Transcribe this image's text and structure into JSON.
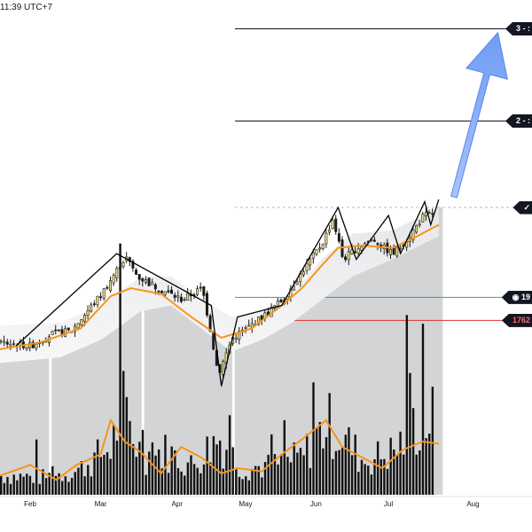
{
  "header": {
    "clock_text": "11:39 UTC+7"
  },
  "targets": [
    {
      "label": "3 - :",
      "price_text_color": "#ffffff"
    },
    {
      "label": "2 - :"
    },
    {
      "label": "✓"
    },
    {
      "label": "◉ 19"
    },
    {
      "label": "1762"
    }
  ],
  "colors": {
    "candle": "#1a1a1a",
    "candle_up": "#f2e27a",
    "ma": "#f7941d",
    "envelope": "#d1d4dc",
    "target_line": "#131722",
    "entry_line": "#26a69a",
    "stop_line": "#e0312e",
    "arrow": "#7ba6f7",
    "zigzag": "#000000",
    "volume": "#111111"
  },
  "chart_data": {
    "type": "candlestick",
    "x_tick_labels": [
      "Feb",
      "Mar",
      "Apr",
      "May",
      "Jun",
      "Jul",
      "Aug"
    ],
    "y_range": [
      1650,
      2150
    ],
    "levels": {
      "target3": 2130,
      "target2": 2050,
      "target1": 1975,
      "entry": 1897,
      "stop": 1877
    },
    "price_path": [
      {
        "d": 0,
        "p": 1858
      },
      {
        "d": 15,
        "p": 1855
      },
      {
        "d": 25,
        "p": 1865
      },
      {
        "d": 35,
        "p": 1868
      },
      {
        "d": 50,
        "p": 1900
      },
      {
        "d": 62,
        "p": 1932
      },
      {
        "d": 68,
        "p": 1915
      },
      {
        "d": 78,
        "p": 1905
      },
      {
        "d": 90,
        "p": 1895
      },
      {
        "d": 100,
        "p": 1905
      },
      {
        "d": 104,
        "p": 1870
      },
      {
        "d": 108,
        "p": 1830
      },
      {
        "d": 115,
        "p": 1862
      },
      {
        "d": 122,
        "p": 1870
      },
      {
        "d": 130,
        "p": 1880
      },
      {
        "d": 140,
        "p": 1895
      },
      {
        "d": 150,
        "p": 1920
      },
      {
        "d": 160,
        "p": 1945
      },
      {
        "d": 165,
        "p": 1965
      },
      {
        "d": 170,
        "p": 1930
      },
      {
        "d": 177,
        "p": 1940
      },
      {
        "d": 185,
        "p": 1948
      },
      {
        "d": 190,
        "p": 1940
      },
      {
        "d": 195,
        "p": 1935
      },
      {
        "d": 203,
        "p": 1950
      },
      {
        "d": 210,
        "p": 1968
      },
      {
        "d": 215,
        "p": 1970
      }
    ],
    "zigzag": [
      {
        "d": 8,
        "p": 1855
      },
      {
        "d": 58,
        "p": 1935
      },
      {
        "d": 105,
        "p": 1890
      },
      {
        "d": 110,
        "p": 1820
      },
      {
        "d": 118,
        "p": 1880
      },
      {
        "d": 140,
        "p": 1890
      },
      {
        "d": 168,
        "p": 1975
      },
      {
        "d": 177,
        "p": 1930
      },
      {
        "d": 193,
        "p": 1968
      },
      {
        "d": 199,
        "p": 1935
      },
      {
        "d": 211,
        "p": 1980
      },
      {
        "d": 214,
        "p": 1960
      },
      {
        "d": 218,
        "p": 1982
      }
    ],
    "ma_path": [
      {
        "d": 0,
        "p": 1852
      },
      {
        "d": 20,
        "p": 1858
      },
      {
        "d": 40,
        "p": 1870
      },
      {
        "d": 55,
        "p": 1898
      },
      {
        "d": 65,
        "p": 1905
      },
      {
        "d": 80,
        "p": 1900
      },
      {
        "d": 95,
        "p": 1880
      },
      {
        "d": 110,
        "p": 1862
      },
      {
        "d": 125,
        "p": 1870
      },
      {
        "d": 140,
        "p": 1890
      },
      {
        "d": 150,
        "p": 1905
      },
      {
        "d": 160,
        "p": 1925
      },
      {
        "d": 168,
        "p": 1940
      },
      {
        "d": 180,
        "p": 1942
      },
      {
        "d": 195,
        "p": 1940
      },
      {
        "d": 205,
        "p": 1948
      },
      {
        "d": 218,
        "p": 1960
      }
    ],
    "envelope_upper": [
      {
        "d": 0,
        "p": 1872
      },
      {
        "d": 30,
        "p": 1875
      },
      {
        "d": 50,
        "p": 1890
      },
      {
        "d": 70,
        "p": 1915
      },
      {
        "d": 85,
        "p": 1915
      },
      {
        "d": 100,
        "p": 1895
      },
      {
        "d": 115,
        "p": 1880
      },
      {
        "d": 130,
        "p": 1885
      },
      {
        "d": 145,
        "p": 1900
      },
      {
        "d": 160,
        "p": 1930
      },
      {
        "d": 175,
        "p": 1952
      },
      {
        "d": 195,
        "p": 1955
      },
      {
        "d": 218,
        "p": 1975
      }
    ],
    "envelope_lower": [
      {
        "d": 0,
        "p": 1840
      },
      {
        "d": 30,
        "p": 1845
      },
      {
        "d": 50,
        "p": 1860
      },
      {
        "d": 70,
        "p": 1885
      },
      {
        "d": 85,
        "p": 1890
      },
      {
        "d": 100,
        "p": 1870
      },
      {
        "d": 115,
        "p": 1850
      },
      {
        "d": 130,
        "p": 1860
      },
      {
        "d": 145,
        "p": 1875
      },
      {
        "d": 160,
        "p": 1895
      },
      {
        "d": 175,
        "p": 1915
      },
      {
        "d": 195,
        "p": 1930
      },
      {
        "d": 218,
        "p": 1950
      }
    ],
    "envelope_gaps": [
      25,
      71,
      116
    ],
    "volume_profile": [
      {
        "d": 0,
        "v": 20
      },
      {
        "d": 20,
        "v": 18
      },
      {
        "d": 38,
        "v": 25
      },
      {
        "d": 55,
        "v": 50
      },
      {
        "d": 60,
        "v": 95
      },
      {
        "d": 70,
        "v": 40
      },
      {
        "d": 82,
        "v": 45
      },
      {
        "d": 95,
        "v": 30
      },
      {
        "d": 108,
        "v": 60
      },
      {
        "d": 120,
        "v": 28
      },
      {
        "d": 135,
        "v": 30
      },
      {
        "d": 150,
        "v": 40
      },
      {
        "d": 162,
        "v": 75
      },
      {
        "d": 170,
        "v": 60
      },
      {
        "d": 180,
        "v": 35
      },
      {
        "d": 195,
        "v": 45
      },
      {
        "d": 205,
        "v": 70
      },
      {
        "d": 215,
        "v": 80
      }
    ],
    "volume_ma": [
      {
        "d": 0,
        "v": 18
      },
      {
        "d": 15,
        "v": 28
      },
      {
        "d": 28,
        "v": 14
      },
      {
        "d": 38,
        "v": 28
      },
      {
        "d": 50,
        "v": 38
      },
      {
        "d": 55,
        "v": 70
      },
      {
        "d": 62,
        "v": 50
      },
      {
        "d": 70,
        "v": 40
      },
      {
        "d": 80,
        "v": 20
      },
      {
        "d": 90,
        "v": 45
      },
      {
        "d": 100,
        "v": 35
      },
      {
        "d": 110,
        "v": 20
      },
      {
        "d": 118,
        "v": 25
      },
      {
        "d": 130,
        "v": 22
      },
      {
        "d": 140,
        "v": 38
      },
      {
        "d": 150,
        "v": 52
      },
      {
        "d": 162,
        "v": 70
      },
      {
        "d": 170,
        "v": 45
      },
      {
        "d": 180,
        "v": 35
      },
      {
        "d": 190,
        "v": 25
      },
      {
        "d": 200,
        "v": 42
      },
      {
        "d": 210,
        "v": 50
      },
      {
        "d": 218,
        "v": 48
      }
    ]
  }
}
